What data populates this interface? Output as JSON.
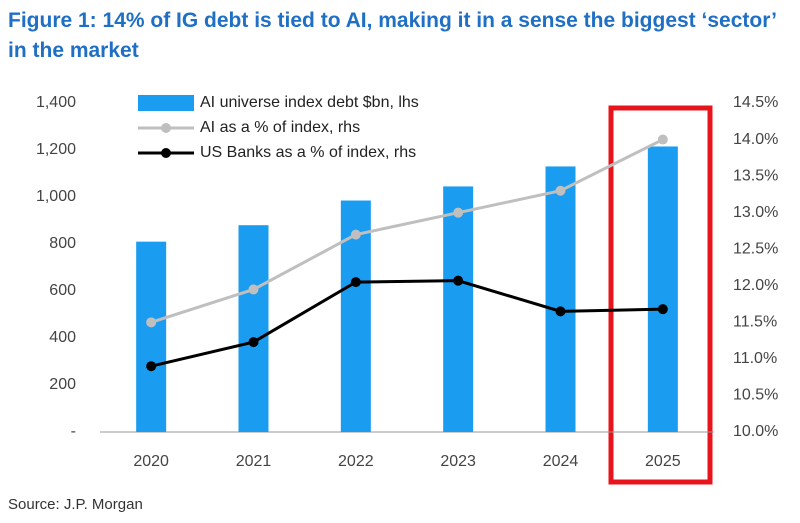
{
  "chart_data": {
    "type": "bar",
    "title": "Figure 1: 14% of IG debt is tied to AI, making it in a sense the biggest ‘sector’ in the market",
    "source": "Source: J.P. Morgan",
    "categories": [
      "2020",
      "2021",
      "2022",
      "2023",
      "2024",
      "2025"
    ],
    "series": [
      {
        "name": "AI universe index debt $bn, lhs",
        "type": "bar",
        "color": "#1a9cf0",
        "values": [
          810,
          880,
          985,
          1045,
          1130,
          1215
        ]
      },
      {
        "name": "AI as a % of index, rhs",
        "type": "line",
        "axis": "y2",
        "color": "#bfbfbf",
        "values": [
          11.5,
          11.95,
          12.7,
          13.0,
          13.3,
          14.0
        ]
      },
      {
        "name": "US Banks as a % of index, rhs",
        "type": "line",
        "axis": "y2",
        "color": "#000000",
        "values": [
          10.9,
          11.23,
          12.05,
          12.07,
          11.65,
          11.68
        ]
      }
    ],
    "ylim": [
      0,
      1400
    ],
    "yticks": [
      {
        "value": 0,
        "label": "-"
      },
      200,
      400,
      600,
      800,
      {
        "value": 1000,
        "label": "1,000"
      },
      {
        "value": 1200,
        "label": "1,200"
      },
      {
        "value": 1400,
        "label": "1,400"
      }
    ],
    "y2lim": [
      10,
      14.5
    ],
    "y2ticks": [
      {
        "value": 10,
        "label": "10.0%"
      },
      {
        "value": 10.5,
        "label": "10.5%"
      },
      {
        "value": 11,
        "label": "11.0%"
      },
      {
        "value": 11.5,
        "label": "11.5%"
      },
      {
        "value": 12,
        "label": "12.0%"
      },
      {
        "value": 12.5,
        "label": "12.5%"
      },
      {
        "value": 13,
        "label": "13.0%"
      },
      {
        "value": 13.5,
        "label": "13.5%"
      },
      {
        "value": 14,
        "label": "14.0%"
      },
      {
        "value": 14.5,
        "label": "14.5%"
      }
    ],
    "grid": false
  }
}
